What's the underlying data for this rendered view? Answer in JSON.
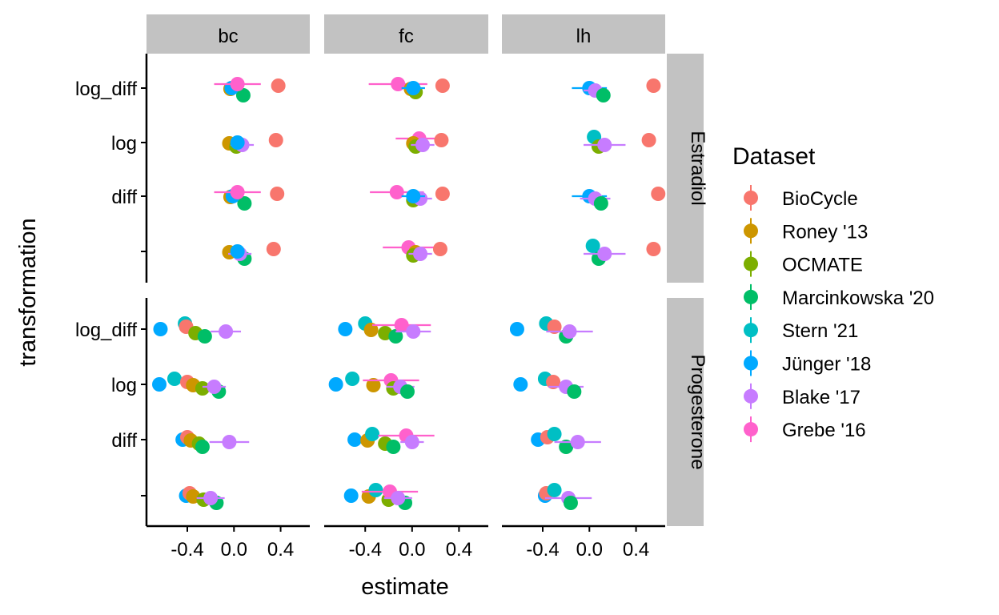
{
  "chart_data": {
    "type": "scatter",
    "description": "Faceted dot plot of estimates with horizontal error bars; columns are hormone-ratio outcomes, rows are hormones; points are jittered vertically within each transformation level.",
    "xlabel": "estimate",
    "ylabel": "transformation",
    "xlim": [
      -0.75,
      0.65
    ],
    "x_ticks": [
      -0.4,
      0.0,
      0.4
    ],
    "x_tick_labels": [
      "-0.4",
      "0.0",
      "0.4"
    ],
    "y_categories": [
      "log_diff",
      "log",
      "diff",
      ""
    ],
    "column_facets": [
      "bc",
      "fc",
      "lh"
    ],
    "row_facets": [
      "Estradiol",
      "Progesterone"
    ],
    "legend": {
      "title": "Dataset",
      "position": "right",
      "entries": [
        {
          "name": "BioCycle",
          "color": "#F8766D"
        },
        {
          "name": "Roney '13",
          "color": "#CD9600"
        },
        {
          "name": "OCMATE",
          "color": "#7CAE00"
        },
        {
          "name": "Marcinkowska '20",
          "color": "#00BE67"
        },
        {
          "name": "Stern '21",
          "color": "#00BFC4"
        },
        {
          "name": "Jünger '18",
          "color": "#00A9FF"
        },
        {
          "name": "Blake '17",
          "color": "#C77CFF"
        },
        {
          "name": "Grebe '16",
          "color": "#FF61CC"
        }
      ]
    },
    "facets": [
      {
        "col": "bc",
        "row": "Estradiol",
        "points": [
          {
            "dataset": "Roney '13",
            "y": "log_diff",
            "x": -0.03,
            "err": 0.0
          },
          {
            "dataset": "Marcinkowska '20",
            "y": "log_diff",
            "x": 0.08,
            "err": 0.0
          },
          {
            "dataset": "Jünger '18",
            "y": "log_diff",
            "x": -0.02,
            "err": 0.0
          },
          {
            "dataset": "Grebe '16",
            "y": "log_diff",
            "x": 0.03,
            "err": 0.2
          },
          {
            "dataset": "BioCycle",
            "y": "log_diff",
            "x": 0.38,
            "err": 0.0
          },
          {
            "dataset": "Roney '13",
            "y": "log",
            "x": -0.04,
            "err": 0.0
          },
          {
            "dataset": "OCMATE",
            "y": "log",
            "x": 0.02,
            "err": 0.0
          },
          {
            "dataset": "Blake '17",
            "y": "log",
            "x": 0.07,
            "err": 0.1
          },
          {
            "dataset": "Jünger '18",
            "y": "log",
            "x": 0.03,
            "err": 0.0
          },
          {
            "dataset": "BioCycle",
            "y": "log",
            "x": 0.36,
            "err": 0.0
          },
          {
            "dataset": "Roney '13",
            "y": "diff",
            "x": -0.03,
            "err": 0.0
          },
          {
            "dataset": "Marcinkowska '20",
            "y": "diff",
            "x": 0.09,
            "err": 0.0
          },
          {
            "dataset": "Jünger '18",
            "y": "diff",
            "x": -0.01,
            "err": 0.0
          },
          {
            "dataset": "Grebe '16",
            "y": "diff",
            "x": 0.03,
            "err": 0.2
          },
          {
            "dataset": "BioCycle",
            "y": "diff",
            "x": 0.37,
            "err": 0.0
          },
          {
            "dataset": "Roney '13",
            "y": "",
            "x": -0.04,
            "err": 0.0
          },
          {
            "dataset": "Marcinkowska '20",
            "y": "",
            "x": 0.09,
            "err": 0.0
          },
          {
            "dataset": "Blake '17",
            "y": "",
            "x": 0.05,
            "err": 0.1
          },
          {
            "dataset": "Jünger '18",
            "y": "",
            "x": 0.03,
            "err": 0.0
          },
          {
            "dataset": "BioCycle",
            "y": "",
            "x": 0.34,
            "err": 0.0
          }
        ]
      },
      {
        "col": "fc",
        "row": "Estradiol",
        "points": [
          {
            "dataset": "Grebe '16",
            "y": "log_diff",
            "x": -0.12,
            "err": 0.25
          },
          {
            "dataset": "Roney '13",
            "y": "log_diff",
            "x": -0.01,
            "err": 0.0
          },
          {
            "dataset": "OCMATE",
            "y": "log_diff",
            "x": 0.03,
            "err": 0.0
          },
          {
            "dataset": "Jünger '18",
            "y": "log_diff",
            "x": 0.01,
            "err": 0.1
          },
          {
            "dataset": "BioCycle",
            "y": "log_diff",
            "x": 0.26,
            "err": 0.0
          },
          {
            "dataset": "Grebe '16",
            "y": "log",
            "x": 0.06,
            "err": 0.2
          },
          {
            "dataset": "Roney '13",
            "y": "log",
            "x": 0.01,
            "err": 0.0
          },
          {
            "dataset": "OCMATE",
            "y": "log",
            "x": 0.03,
            "err": 0.0
          },
          {
            "dataset": "Blake '17",
            "y": "log",
            "x": 0.09,
            "err": 0.1
          },
          {
            "dataset": "BioCycle",
            "y": "log",
            "x": 0.25,
            "err": 0.0
          },
          {
            "dataset": "Grebe '16",
            "y": "diff",
            "x": -0.13,
            "err": 0.23
          },
          {
            "dataset": "OCMATE",
            "y": "diff",
            "x": 0.01,
            "err": 0.0
          },
          {
            "dataset": "Blake '17",
            "y": "diff",
            "x": 0.07,
            "err": 0.1
          },
          {
            "dataset": "Jünger '18",
            "y": "diff",
            "x": 0.01,
            "err": 0.1
          },
          {
            "dataset": "BioCycle",
            "y": "diff",
            "x": 0.26,
            "err": 0.0
          },
          {
            "dataset": "Grebe '16",
            "y": "",
            "x": -0.03,
            "err": 0.22
          },
          {
            "dataset": "Roney '13",
            "y": "",
            "x": 0.03,
            "err": 0.0
          },
          {
            "dataset": "OCMATE",
            "y": "",
            "x": 0.01,
            "err": 0.0
          },
          {
            "dataset": "Blake '17",
            "y": "",
            "x": 0.07,
            "err": 0.1
          },
          {
            "dataset": "BioCycle",
            "y": "",
            "x": 0.24,
            "err": 0.0
          }
        ]
      },
      {
        "col": "lh",
        "row": "Estradiol",
        "points": [
          {
            "dataset": "Jünger '18",
            "y": "log_diff",
            "x": 0.0,
            "err": 0.15
          },
          {
            "dataset": "Blake '17",
            "y": "log_diff",
            "x": 0.05,
            "err": 0.1
          },
          {
            "dataset": "Marcinkowska '20",
            "y": "log_diff",
            "x": 0.12,
            "err": 0.0
          },
          {
            "dataset": "BioCycle",
            "y": "log_diff",
            "x": 0.55,
            "err": 0.0
          },
          {
            "dataset": "Stern '21",
            "y": "log",
            "x": 0.04,
            "err": 0.0
          },
          {
            "dataset": "OCMATE",
            "y": "log",
            "x": 0.08,
            "err": 0.0
          },
          {
            "dataset": "Blake '17",
            "y": "log",
            "x": 0.13,
            "err": 0.18
          },
          {
            "dataset": "BioCycle",
            "y": "log",
            "x": 0.51,
            "err": 0.0
          },
          {
            "dataset": "Jünger '18",
            "y": "diff",
            "x": 0.0,
            "err": 0.15
          },
          {
            "dataset": "Blake '17",
            "y": "diff",
            "x": 0.05,
            "err": 0.13
          },
          {
            "dataset": "Marcinkowska '20",
            "y": "diff",
            "x": 0.1,
            "err": 0.0
          },
          {
            "dataset": "BioCycle",
            "y": "diff",
            "x": 0.59,
            "err": 0.0
          },
          {
            "dataset": "Stern '21",
            "y": "",
            "x": 0.03,
            "err": 0.0
          },
          {
            "dataset": "Marcinkowska '20",
            "y": "",
            "x": 0.08,
            "err": 0.0
          },
          {
            "dataset": "Blake '17",
            "y": "",
            "x": 0.13,
            "err": 0.18
          },
          {
            "dataset": "BioCycle",
            "y": "",
            "x": 0.55,
            "err": 0.0
          }
        ]
      },
      {
        "col": "bc",
        "row": "Progesterone",
        "points": [
          {
            "dataset": "Jünger '18",
            "y": "log_diff",
            "x": -0.63,
            "err": 0.0
          },
          {
            "dataset": "Stern '21",
            "y": "log_diff",
            "x": -0.42,
            "err": 0.0
          },
          {
            "dataset": "BioCycle",
            "y": "log_diff",
            "x": -0.41,
            "err": 0.0
          },
          {
            "dataset": "OCMATE",
            "y": "log_diff",
            "x": -0.33,
            "err": 0.0
          },
          {
            "dataset": "Marcinkowska '20",
            "y": "log_diff",
            "x": -0.25,
            "err": 0.0
          },
          {
            "dataset": "Blake '17",
            "y": "log_diff",
            "x": -0.07,
            "err": 0.13
          },
          {
            "dataset": "Jünger '18",
            "y": "log",
            "x": -0.64,
            "err": 0.0
          },
          {
            "dataset": "Stern '21",
            "y": "log",
            "x": -0.51,
            "err": 0.0
          },
          {
            "dataset": "BioCycle",
            "y": "log",
            "x": -0.4,
            "err": 0.0
          },
          {
            "dataset": "Roney '13",
            "y": "log",
            "x": -0.35,
            "err": 0.0
          },
          {
            "dataset": "OCMATE",
            "y": "log",
            "x": -0.27,
            "err": 0.0
          },
          {
            "dataset": "Marcinkowska '20",
            "y": "log",
            "x": -0.13,
            "err": 0.0
          },
          {
            "dataset": "Blake '17",
            "y": "log",
            "x": -0.17,
            "err": 0.1
          },
          {
            "dataset": "Jünger '18",
            "y": "diff",
            "x": -0.44,
            "err": 0.0
          },
          {
            "dataset": "BioCycle",
            "y": "diff",
            "x": -0.4,
            "err": 0.0
          },
          {
            "dataset": "Roney '13",
            "y": "diff",
            "x": -0.37,
            "err": 0.0
          },
          {
            "dataset": "OCMATE",
            "y": "diff",
            "x": -0.3,
            "err": 0.0
          },
          {
            "dataset": "Marcinkowska '20",
            "y": "diff",
            "x": -0.27,
            "err": 0.0
          },
          {
            "dataset": "Blake '17",
            "y": "diff",
            "x": -0.04,
            "err": 0.17
          },
          {
            "dataset": "Jünger '18",
            "y": "",
            "x": -0.41,
            "err": 0.0
          },
          {
            "dataset": "BioCycle",
            "y": "",
            "x": -0.38,
            "err": 0.0
          },
          {
            "dataset": "Roney '13",
            "y": "",
            "x": -0.35,
            "err": 0.0
          },
          {
            "dataset": "OCMATE",
            "y": "",
            "x": -0.26,
            "err": 0.0
          },
          {
            "dataset": "Marcinkowska '20",
            "y": "",
            "x": -0.15,
            "err": 0.0
          },
          {
            "dataset": "Blake '17",
            "y": "",
            "x": -0.2,
            "err": 0.12
          }
        ]
      },
      {
        "col": "fc",
        "row": "Progesterone",
        "points": [
          {
            "dataset": "Jünger '18",
            "y": "log_diff",
            "x": -0.57,
            "err": 0.0
          },
          {
            "dataset": "Stern '21",
            "y": "log_diff",
            "x": -0.4,
            "err": 0.0
          },
          {
            "dataset": "Roney '13",
            "y": "log_diff",
            "x": -0.35,
            "err": 0.0
          },
          {
            "dataset": "OCMATE",
            "y": "log_diff",
            "x": -0.23,
            "err": 0.0
          },
          {
            "dataset": "Marcinkowska '20",
            "y": "log_diff",
            "x": -0.14,
            "err": 0.0
          },
          {
            "dataset": "Grebe '16",
            "y": "log_diff",
            "x": -0.09,
            "err": 0.25
          },
          {
            "dataset": "Blake '17",
            "y": "log_diff",
            "x": 0.01,
            "err": 0.15
          },
          {
            "dataset": "Jünger '18",
            "y": "log",
            "x": -0.65,
            "err": 0.0
          },
          {
            "dataset": "Stern '21",
            "y": "log",
            "x": -0.51,
            "err": 0.0
          },
          {
            "dataset": "Roney '13",
            "y": "log",
            "x": -0.33,
            "err": 0.0
          },
          {
            "dataset": "Grebe '16",
            "y": "log",
            "x": -0.18,
            "err": 0.24
          },
          {
            "dataset": "OCMATE",
            "y": "log",
            "x": -0.16,
            "err": 0.0
          },
          {
            "dataset": "Blake '17",
            "y": "log",
            "x": -0.1,
            "err": 0.12
          },
          {
            "dataset": "Marcinkowska '20",
            "y": "log",
            "x": -0.04,
            "err": 0.0
          },
          {
            "dataset": "Jünger '18",
            "y": "diff",
            "x": -0.49,
            "err": 0.0
          },
          {
            "dataset": "Roney '13",
            "y": "diff",
            "x": -0.38,
            "err": 0.0
          },
          {
            "dataset": "Stern '21",
            "y": "diff",
            "x": -0.34,
            "err": 0.0
          },
          {
            "dataset": "OCMATE",
            "y": "diff",
            "x": -0.23,
            "err": 0.0
          },
          {
            "dataset": "Marcinkowska '20",
            "y": "diff",
            "x": -0.16,
            "err": 0.0
          },
          {
            "dataset": "Grebe '16",
            "y": "diff",
            "x": -0.05,
            "err": 0.24
          },
          {
            "dataset": "Blake '17",
            "y": "diff",
            "x": 0.0,
            "err": 0.1
          },
          {
            "dataset": "Jünger '18",
            "y": "",
            "x": -0.52,
            "err": 0.0
          },
          {
            "dataset": "Roney '13",
            "y": "",
            "x": -0.37,
            "err": 0.0
          },
          {
            "dataset": "Stern '21",
            "y": "",
            "x": -0.31,
            "err": 0.0
          },
          {
            "dataset": "OCMATE",
            "y": "",
            "x": -0.2,
            "err": 0.0
          },
          {
            "dataset": "Grebe '16",
            "y": "",
            "x": -0.19,
            "err": 0.24
          },
          {
            "dataset": "Marcinkowska '20",
            "y": "",
            "x": -0.06,
            "err": 0.0
          },
          {
            "dataset": "Blake '17",
            "y": "",
            "x": -0.12,
            "err": 0.12
          }
        ]
      },
      {
        "col": "lh",
        "row": "Progesterone",
        "points": [
          {
            "dataset": "Jünger '18",
            "y": "log_diff",
            "x": -0.62,
            "err": 0.0
          },
          {
            "dataset": "Stern '21",
            "y": "log_diff",
            "x": -0.37,
            "err": 0.0
          },
          {
            "dataset": "BioCycle",
            "y": "log_diff",
            "x": -0.3,
            "err": 0.0
          },
          {
            "dataset": "Marcinkowska '20",
            "y": "log_diff",
            "x": -0.2,
            "err": 0.0
          },
          {
            "dataset": "Blake '17",
            "y": "log_diff",
            "x": -0.17,
            "err": 0.2
          },
          {
            "dataset": "Jünger '18",
            "y": "log",
            "x": -0.59,
            "err": 0.0
          },
          {
            "dataset": "Stern '21",
            "y": "log",
            "x": -0.38,
            "err": 0.0
          },
          {
            "dataset": "BioCycle",
            "y": "log",
            "x": -0.31,
            "err": 0.0
          },
          {
            "dataset": "Blake '17",
            "y": "log",
            "x": -0.2,
            "err": 0.15
          },
          {
            "dataset": "Marcinkowska '20",
            "y": "log",
            "x": -0.13,
            "err": 0.0
          },
          {
            "dataset": "Jünger '18",
            "y": "diff",
            "x": -0.44,
            "err": 0.0
          },
          {
            "dataset": "BioCycle",
            "y": "diff",
            "x": -0.36,
            "err": 0.0
          },
          {
            "dataset": "Stern '21",
            "y": "diff",
            "x": -0.3,
            "err": 0.0
          },
          {
            "dataset": "Marcinkowska '20",
            "y": "diff",
            "x": -0.2,
            "err": 0.0
          },
          {
            "dataset": "Blake '17",
            "y": "diff",
            "x": -0.1,
            "err": 0.2
          },
          {
            "dataset": "Jünger '18",
            "y": "",
            "x": -0.38,
            "err": 0.0
          },
          {
            "dataset": "BioCycle",
            "y": "",
            "x": -0.37,
            "err": 0.0
          },
          {
            "dataset": "Stern '21",
            "y": "",
            "x": -0.3,
            "err": 0.0
          },
          {
            "dataset": "Blake '17",
            "y": "",
            "x": -0.18,
            "err": 0.2
          },
          {
            "dataset": "Marcinkowska '20",
            "y": "",
            "x": -0.16,
            "err": 0.0
          }
        ]
      }
    ]
  }
}
